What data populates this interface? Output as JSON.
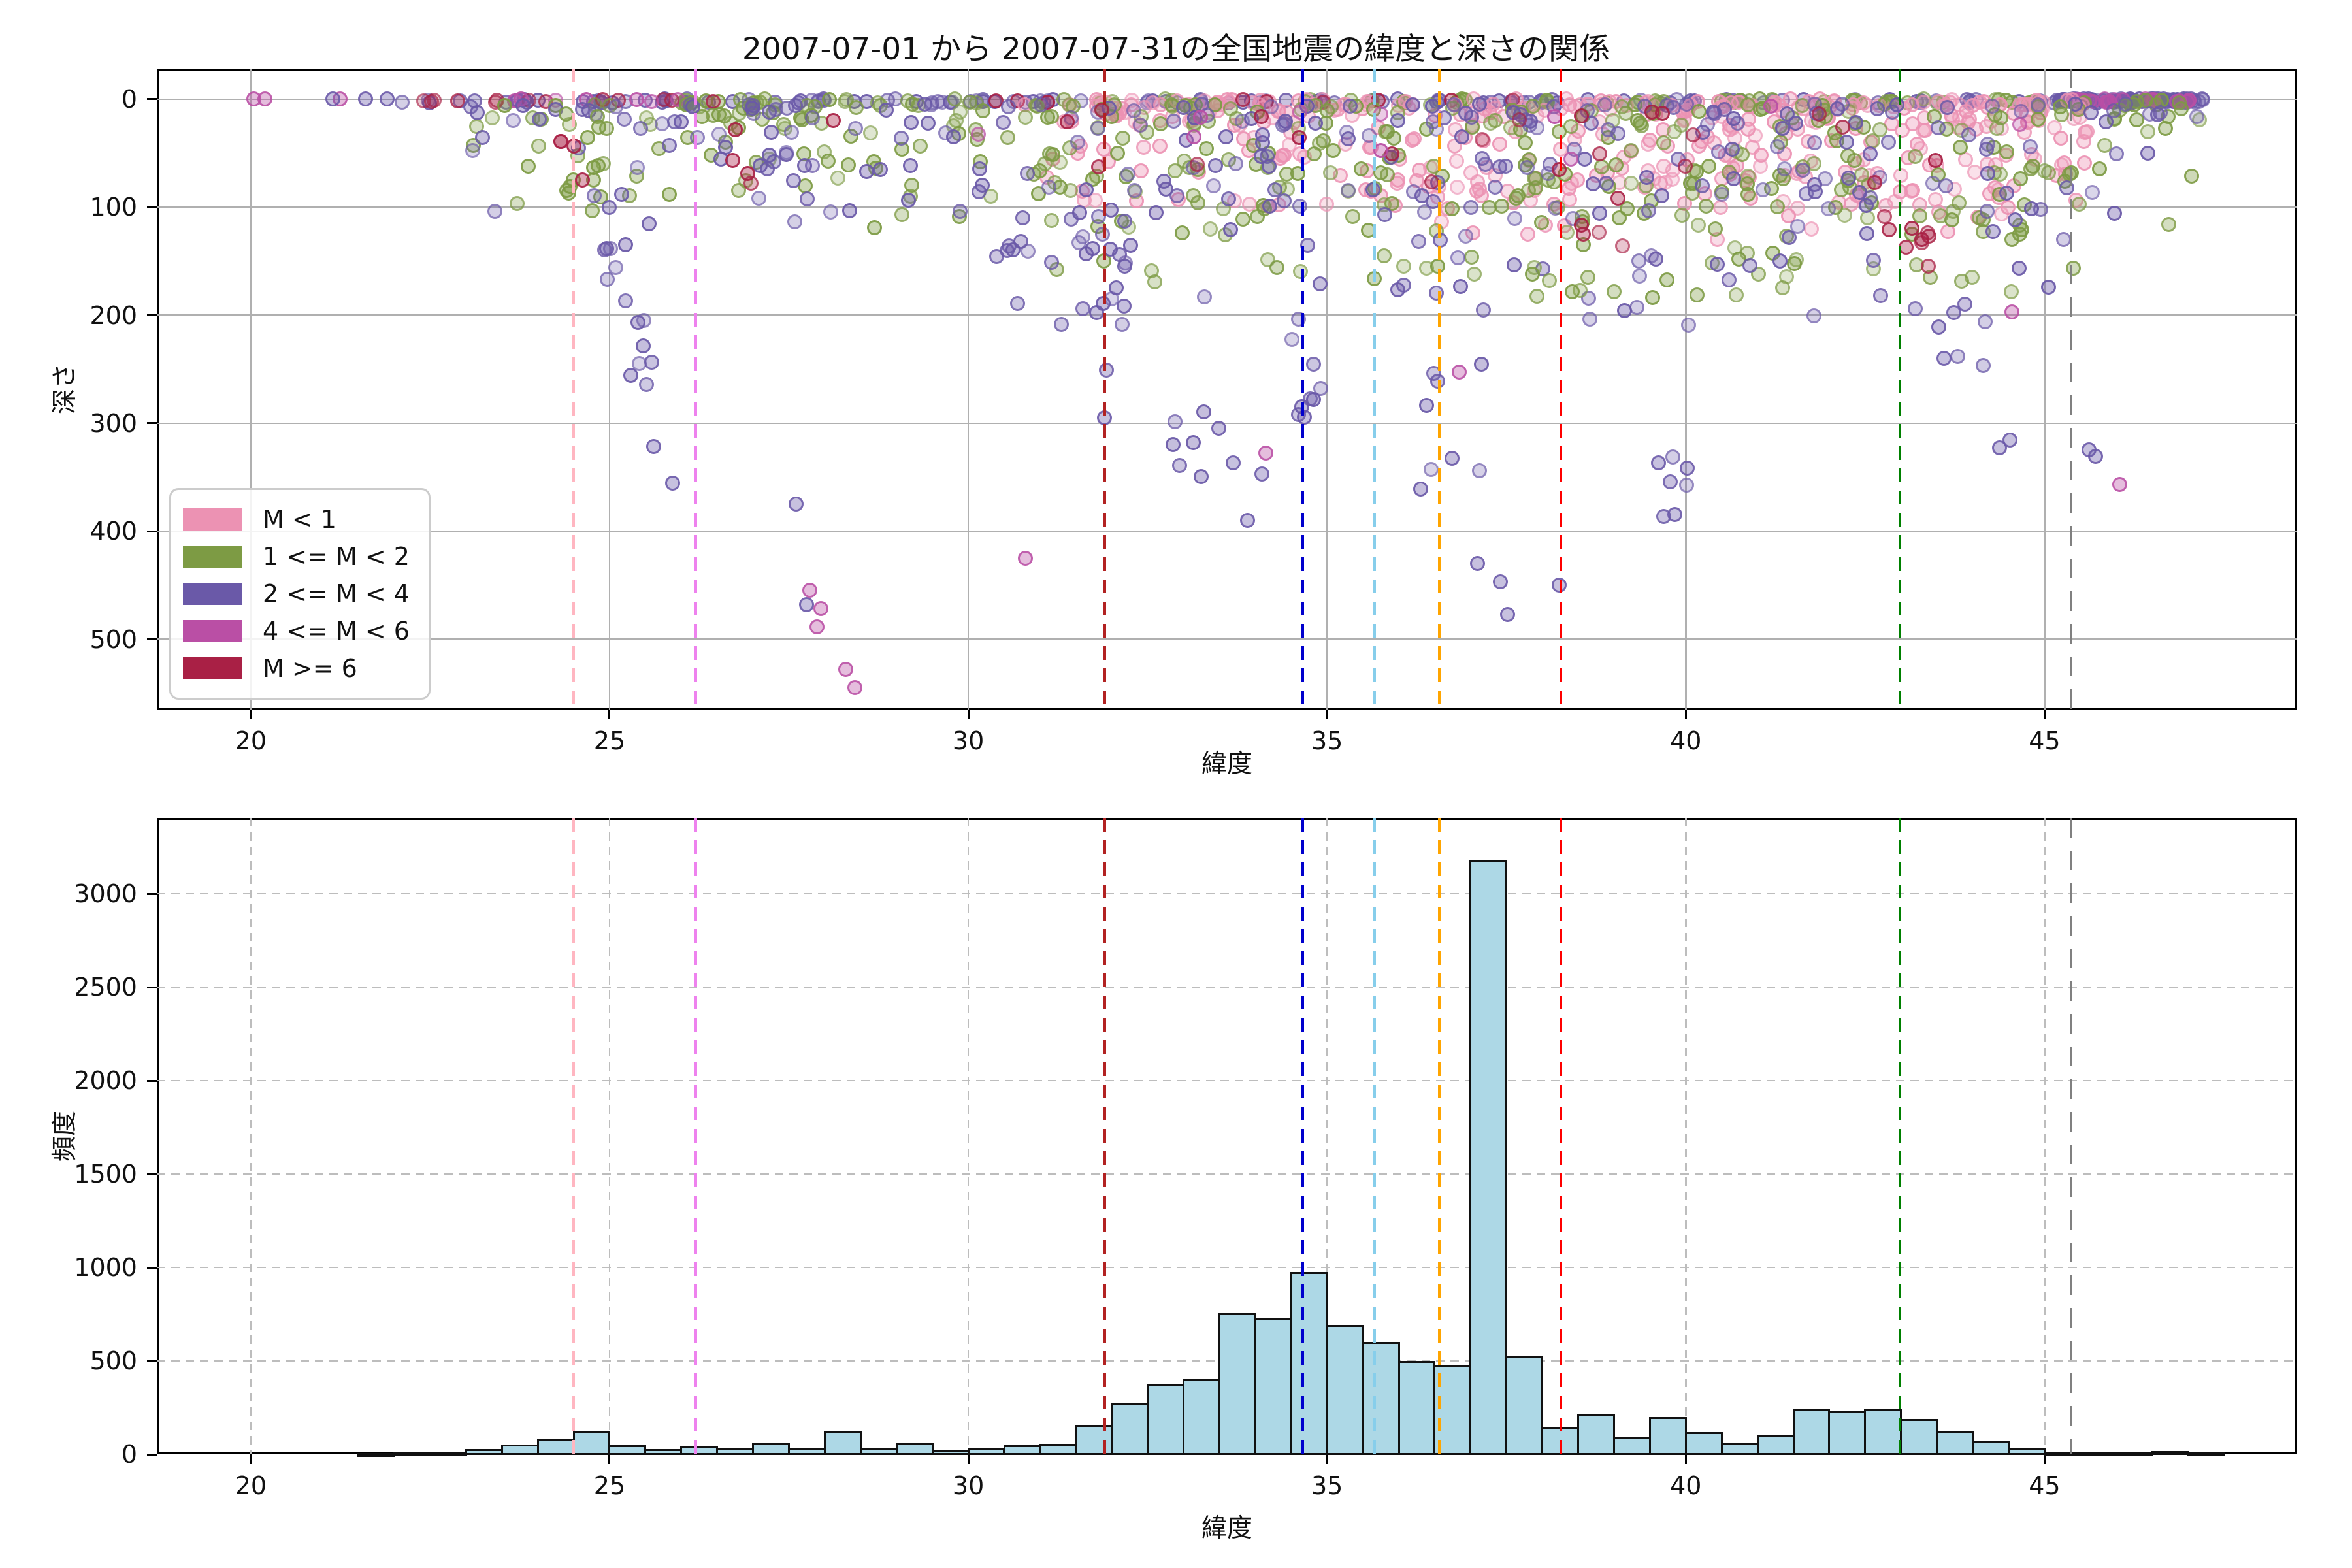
{
  "figure": {
    "title": "2007-07-01 から 2007-07-31の全国地震の緯度と深さの関係",
    "background": "#ffffff",
    "grid_color_solid": "#b0b0b0",
    "grid_color_dashed": "#bdbdbd",
    "histogram_fill": "#add8e6",
    "histogram_edge": "#111111"
  },
  "legend": {
    "items": [
      {
        "label": "M < 1",
        "color": "#EC92B3"
      },
      {
        "label": "1 <= M < 2",
        "color": "#7D9B44"
      },
      {
        "label": "2 <= M < 4",
        "color": "#6A59A8"
      },
      {
        "label": "4 <= M < 6",
        "color": "#BA4FA5"
      },
      {
        "label": "M >= 6",
        "color": "#A92045"
      }
    ]
  },
  "chart_data": [
    {
      "type": "scatter",
      "title": "2007-07-01 から 2007-07-31の全国地震の緯度と深さの関係",
      "xlabel": "緯度",
      "ylabel": "深さ",
      "xlim": [
        18.69,
        48.52
      ],
      "ylim": [
        565,
        -28.4
      ],
      "y_inverted": true,
      "xticks": [
        20,
        25,
        30,
        35,
        40,
        45
      ],
      "yticks": [
        0,
        100,
        200,
        300,
        400,
        500
      ],
      "grid": "solid",
      "legend_position": "lower-left",
      "classes": {
        "p": {
          "label": "M < 1",
          "color": "#EC92B3"
        },
        "g": {
          "label": "1 <= M < 2",
          "color": "#7D9B44"
        },
        "b": {
          "label": "2 <= M < 4",
          "color": "#6A59A8"
        },
        "m": {
          "label": "4 <= M < 6",
          "color": "#BA4FA5"
        },
        "r": {
          "label": "M >= 6",
          "color": "#A92045"
        }
      },
      "vlines": [
        {
          "lat": 24.5,
          "color": "#ffb6c1"
        },
        {
          "lat": 26.2,
          "color": "#ee82ee"
        },
        {
          "lat": 31.9,
          "color": "#b22222"
        },
        {
          "lat": 34.66,
          "color": "#0000cd"
        },
        {
          "lat": 35.66,
          "color": "#87ceeb"
        },
        {
          "lat": 36.56,
          "color": "#ffa500"
        },
        {
          "lat": 38.26,
          "color": "#ff0000"
        },
        {
          "lat": 42.98,
          "color": "#008000"
        },
        {
          "lat": 45.37,
          "color": "#808080",
          "dash": [
            30,
            20
          ]
        }
      ],
      "scatter_clusters": [
        {
          "c": "b",
          "n": 150,
          "lat": [
            22.0,
            47.3
          ],
          "d": [
            0,
            4
          ]
        },
        {
          "c": "b",
          "n": 70,
          "lat": [
            45.2,
            47.3
          ],
          "d": [
            0,
            3
          ]
        },
        {
          "c": "m",
          "n": 20,
          "lat": [
            45.4,
            47.2
          ],
          "d": [
            0,
            3
          ]
        },
        {
          "c": "g",
          "n": 70,
          "lat": [
            26.0,
            47.0
          ],
          "d": [
            0,
            4
          ]
        },
        {
          "c": "p",
          "n": 50,
          "lat": [
            31.0,
            45.5
          ],
          "d": [
            0,
            4
          ]
        },
        {
          "c": "r",
          "n": 13,
          "lat": [
            22.4,
            26.5
          ],
          "d": [
            0,
            3
          ]
        },
        {
          "c": "r",
          "n": 9,
          "lat": [
            30.0,
            38.5
          ],
          "d": [
            0,
            3
          ]
        },
        {
          "c": "m",
          "n": 7,
          "lat": [
            23.5,
            26.5
          ],
          "d": [
            0,
            3
          ]
        },
        {
          "c": "p",
          "n": 300,
          "lat": [
            30.5,
            45.6
          ],
          "d": [
            5,
            100
          ],
          "bias": 2.2
        },
        {
          "c": "p",
          "n": 60,
          "lat": [
            35.5,
            44.5
          ],
          "d": [
            60,
            130
          ],
          "bias": 1.4
        },
        {
          "c": "g",
          "n": 280,
          "lat": [
            23.0,
            47.2
          ],
          "d": [
            5,
            120
          ],
          "bias": 2.0
        },
        {
          "c": "g",
          "n": 120,
          "lat": [
            31.0,
            45.5
          ],
          "d": [
            60,
            185
          ],
          "bias": 1.3
        },
        {
          "c": "b",
          "n": 230,
          "lat": [
            23.0,
            47.2
          ],
          "d": [
            5,
            115
          ],
          "bias": 2.0
        },
        {
          "c": "b",
          "n": 80,
          "lat": [
            30.5,
            45.3
          ],
          "d": [
            80,
            210
          ],
          "bias": 1.2
        },
        {
          "c": "r",
          "n": 26,
          "lat": [
            26.5,
            44.2
          ],
          "d": [
            8,
            85
          ],
          "bias": 1.4
        },
        {
          "c": "r",
          "n": 9,
          "lat": [
            42.5,
            43.4
          ],
          "d": [
            100,
            160
          ]
        },
        {
          "c": "r",
          "n": 5,
          "lat": [
            38.5,
            39.3
          ],
          "d": [
            85,
            140
          ]
        },
        {
          "c": "m",
          "n": 10,
          "lat": [
            26.0,
            45.0
          ],
          "d": [
            5,
            60
          ],
          "bias": 1.5
        },
        {
          "c": "b",
          "n": 10,
          "lat": [
            24.9,
            25.6
          ],
          "d": [
            110,
            215
          ]
        },
        {
          "c": "g",
          "n": 8,
          "lat": [
            24.3,
            25.1
          ],
          "d": [
            10,
            95
          ]
        },
        {
          "c": "r",
          "n": 4,
          "lat": [
            24.3,
            24.7
          ],
          "d": [
            20,
            80
          ]
        },
        {
          "c": "b",
          "n": 5,
          "lat": [
            25.2,
            25.7
          ],
          "d": [
            225,
            300
          ]
        },
        {
          "c": "b",
          "n": 12,
          "lat": [
            31.7,
            32.3
          ],
          "d": [
            120,
            265
          ]
        },
        {
          "c": "b",
          "n": 6,
          "lat": [
            32.8,
            33.4
          ],
          "d": [
            280,
            355
          ]
        },
        {
          "c": "b",
          "n": 8,
          "lat": [
            34.4,
            34.95
          ],
          "d": [
            200,
            305
          ]
        },
        {
          "c": "b",
          "n": 8,
          "lat": [
            36.2,
            37.4
          ],
          "d": [
            240,
            390
          ]
        },
        {
          "c": "b",
          "n": 6,
          "lat": [
            30.4,
            30.95
          ],
          "d": [
            125,
            195
          ]
        },
        {
          "c": "b",
          "n": 5,
          "lat": [
            43.5,
            44.2
          ],
          "d": [
            195,
            250
          ]
        },
        {
          "c": "g",
          "n": 5,
          "lat": [
            37.6,
            38.6
          ],
          "d": [
            150,
            210
          ]
        },
        {
          "c": "b",
          "n": 4,
          "lat": [
            39.5,
            40.1
          ],
          "d": [
            300,
            390
          ]
        }
      ],
      "scatter_points": [
        [
          20.05,
          0,
          "m"
        ],
        [
          20.2,
          0,
          "m"
        ],
        [
          21.25,
          0,
          "m"
        ],
        [
          21.15,
          0,
          "b"
        ],
        [
          21.6,
          0,
          "b"
        ],
        [
          21.9,
          0,
          "b"
        ],
        [
          25.62,
          322,
          "b"
        ],
        [
          25.88,
          356,
          "b"
        ],
        [
          27.6,
          375,
          "b"
        ],
        [
          27.75,
          468,
          "b"
        ],
        [
          27.8,
          455,
          "m"
        ],
        [
          27.95,
          472,
          "m"
        ],
        [
          27.9,
          489,
          "m"
        ],
        [
          28.3,
          528,
          "m"
        ],
        [
          28.42,
          545,
          "m"
        ],
        [
          30.8,
          425,
          "m"
        ],
        [
          31.9,
          295,
          "b"
        ],
        [
          33.5,
          305,
          "b"
        ],
        [
          33.7,
          337,
          "b"
        ],
        [
          33.9,
          390,
          "b"
        ],
        [
          34.1,
          347,
          "b"
        ],
        [
          34.15,
          328,
          "m"
        ],
        [
          36.85,
          253,
          "m"
        ],
        [
          37.1,
          430,
          "b"
        ],
        [
          37.42,
          447,
          "b"
        ],
        [
          37.52,
          477,
          "b"
        ],
        [
          38.24,
          450,
          "b"
        ],
        [
          39.62,
          337,
          "b"
        ],
        [
          39.85,
          385,
          "b"
        ],
        [
          40.02,
          342,
          "b"
        ],
        [
          43.6,
          240,
          "b"
        ],
        [
          44.38,
          323,
          "b"
        ],
        [
          44.52,
          316,
          "b"
        ],
        [
          44.55,
          197,
          "m"
        ],
        [
          45.62,
          325,
          "b"
        ],
        [
          45.72,
          331,
          "b"
        ],
        [
          46.05,
          357,
          "m"
        ]
      ]
    },
    {
      "type": "histogram",
      "xlabel": "緯度",
      "ylabel": "頻度",
      "xlim": [
        18.69,
        48.52
      ],
      "ylim": [
        0,
        3406
      ],
      "xticks": [
        20,
        25,
        30,
        35,
        40,
        45
      ],
      "yticks": [
        0,
        500,
        1000,
        1500,
        2000,
        2500,
        3000
      ],
      "grid": "dashed",
      "bar_fill": "#add8e6",
      "bar_edge": "#111111",
      "bin_width": 0.5,
      "bin_starts_at": 21.5,
      "bins": [
        {
          "lat": 21.5,
          "count": 3
        },
        {
          "lat": 22.0,
          "count": 4
        },
        {
          "lat": 22.5,
          "count": 10
        },
        {
          "lat": 23.0,
          "count": 24
        },
        {
          "lat": 23.5,
          "count": 48
        },
        {
          "lat": 24.0,
          "count": 75
        },
        {
          "lat": 24.5,
          "count": 120
        },
        {
          "lat": 25.0,
          "count": 42
        },
        {
          "lat": 25.5,
          "count": 24
        },
        {
          "lat": 26.0,
          "count": 35
        },
        {
          "lat": 26.5,
          "count": 30
        },
        {
          "lat": 27.0,
          "count": 55
        },
        {
          "lat": 27.5,
          "count": 31
        },
        {
          "lat": 28.0,
          "count": 121
        },
        {
          "lat": 28.5,
          "count": 31
        },
        {
          "lat": 29.0,
          "count": 59
        },
        {
          "lat": 29.5,
          "count": 20
        },
        {
          "lat": 30.0,
          "count": 31
        },
        {
          "lat": 30.5,
          "count": 45
        },
        {
          "lat": 31.0,
          "count": 50
        },
        {
          "lat": 31.5,
          "count": 152
        },
        {
          "lat": 32.0,
          "count": 266
        },
        {
          "lat": 32.5,
          "count": 372
        },
        {
          "lat": 33.0,
          "count": 398
        },
        {
          "lat": 33.5,
          "count": 750
        },
        {
          "lat": 34.0,
          "count": 723
        },
        {
          "lat": 34.5,
          "count": 971
        },
        {
          "lat": 35.0,
          "count": 688
        },
        {
          "lat": 35.5,
          "count": 596
        },
        {
          "lat": 36.0,
          "count": 494
        },
        {
          "lat": 36.5,
          "count": 470
        },
        {
          "lat": 37.0,
          "count": 3174
        },
        {
          "lat": 37.5,
          "count": 520
        },
        {
          "lat": 38.0,
          "count": 143
        },
        {
          "lat": 38.5,
          "count": 210
        },
        {
          "lat": 39.0,
          "count": 90
        },
        {
          "lat": 39.5,
          "count": 195
        },
        {
          "lat": 40.0,
          "count": 115
        },
        {
          "lat": 40.5,
          "count": 55
        },
        {
          "lat": 41.0,
          "count": 95
        },
        {
          "lat": 41.5,
          "count": 240
        },
        {
          "lat": 42.0,
          "count": 225
        },
        {
          "lat": 42.5,
          "count": 240
        },
        {
          "lat": 43.0,
          "count": 185
        },
        {
          "lat": 43.5,
          "count": 120
        },
        {
          "lat": 44.0,
          "count": 65
        },
        {
          "lat": 44.5,
          "count": 25
        },
        {
          "lat": 45.0,
          "count": 10
        },
        {
          "lat": 45.5,
          "count": 5
        },
        {
          "lat": 46.0,
          "count": 6
        },
        {
          "lat": 46.5,
          "count": 12
        },
        {
          "lat": 47.0,
          "count": 5
        }
      ],
      "vlines": [
        {
          "lat": 24.5,
          "color": "#ffb6c1"
        },
        {
          "lat": 26.2,
          "color": "#ee82ee"
        },
        {
          "lat": 31.9,
          "color": "#b22222"
        },
        {
          "lat": 34.66,
          "color": "#0000cd"
        },
        {
          "lat": 35.66,
          "color": "#87ceeb"
        },
        {
          "lat": 36.56,
          "color": "#ffa500"
        },
        {
          "lat": 38.26,
          "color": "#ff0000"
        },
        {
          "lat": 42.98,
          "color": "#008000"
        },
        {
          "lat": 45.37,
          "color": "#808080",
          "dash": [
            30,
            20
          ]
        }
      ]
    }
  ]
}
